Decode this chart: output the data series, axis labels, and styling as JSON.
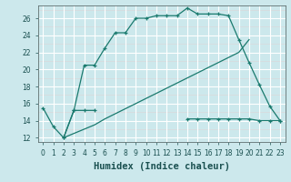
{
  "xlabel": "Humidex (Indice chaleur)",
  "background_color": "#cce8ec",
  "grid_color": "#ffffff",
  "line_color": "#1a7a6e",
  "xlim": [
    -0.5,
    23.5
  ],
  "ylim": [
    11.5,
    27.5
  ],
  "yticks": [
    12,
    14,
    16,
    18,
    20,
    22,
    24,
    26
  ],
  "xticks": [
    0,
    1,
    2,
    3,
    4,
    5,
    6,
    7,
    8,
    9,
    10,
    11,
    12,
    13,
    14,
    15,
    16,
    17,
    18,
    19,
    20,
    21,
    22,
    23
  ],
  "series1_x": [
    0,
    1,
    2,
    3,
    4,
    5,
    6,
    7,
    8,
    9,
    10,
    11,
    12,
    13,
    14,
    15,
    16,
    17,
    18,
    19,
    20,
    21,
    22,
    23
  ],
  "series1_y": [
    15.5,
    13.3,
    12.0,
    15.2,
    20.5,
    20.5,
    22.5,
    24.3,
    24.3,
    26.0,
    26.0,
    26.3,
    26.3,
    26.3,
    27.2,
    26.5,
    26.5,
    26.5,
    26.3,
    23.5,
    20.8,
    18.2,
    15.7,
    14.0
  ],
  "series2_x": [
    0,
    1,
    2,
    3,
    4,
    5,
    6,
    7,
    8,
    9,
    10,
    11,
    12,
    13,
    14,
    15,
    16,
    17,
    18,
    19,
    20,
    21,
    22,
    23
  ],
  "series2_y": [
    null,
    null,
    12.0,
    15.2,
    15.2,
    15.2,
    null,
    null,
    null,
    null,
    null,
    null,
    null,
    null,
    14.2,
    14.2,
    14.2,
    14.2,
    14.2,
    14.2,
    14.2,
    14.0,
    14.0,
    14.0
  ],
  "series3_x": [
    2,
    3,
    5,
    6,
    7,
    8,
    9,
    10,
    11,
    12,
    13,
    14,
    15,
    16,
    17,
    18,
    19,
    20
  ],
  "series3_y": [
    12.0,
    12.5,
    13.5,
    14.2,
    14.8,
    15.4,
    16.0,
    16.6,
    17.2,
    17.8,
    18.4,
    19.0,
    19.6,
    20.2,
    20.8,
    21.4,
    22.0,
    23.5
  ],
  "xlabel_color": "#1a5050",
  "tick_color": "#1a5050",
  "xlabel_fontsize": 7.5
}
